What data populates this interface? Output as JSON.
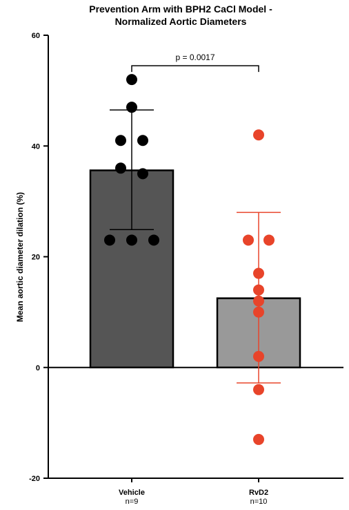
{
  "chart_data": {
    "type": "bar",
    "title_line1": "Prevention Arm with BPH2 CaCl Model -",
    "title_line2": "Normalized Aortic Diameters",
    "ylabel": "Mean aortic diameter dilation (%)",
    "xlabel": "",
    "ylim": [
      -20,
      60
    ],
    "yticks": [
      -20,
      0,
      20,
      40,
      60
    ],
    "grid": false,
    "legend": "none",
    "categories": [
      "Vehicle",
      "RvD2"
    ],
    "category_n": [
      "n=9",
      "n=10"
    ],
    "values": [
      35.6,
      12.5
    ],
    "error_upper": [
      46.5,
      28.0
    ],
    "error_lower": [
      24.9,
      -2.8
    ],
    "bar_colors": [
      "#555555",
      "#999999"
    ],
    "point_colors": [
      "#000000",
      "#e8442a"
    ],
    "points": [
      [
        52,
        47,
        41,
        41,
        36,
        35,
        23,
        23,
        23
      ],
      [
        42,
        23,
        23,
        17,
        14,
        12,
        10,
        2,
        -4,
        -13
      ]
    ],
    "annotation": {
      "text": "p = 0.0017",
      "from": "Vehicle",
      "to": "RvD2",
      "y": 54.5
    }
  }
}
